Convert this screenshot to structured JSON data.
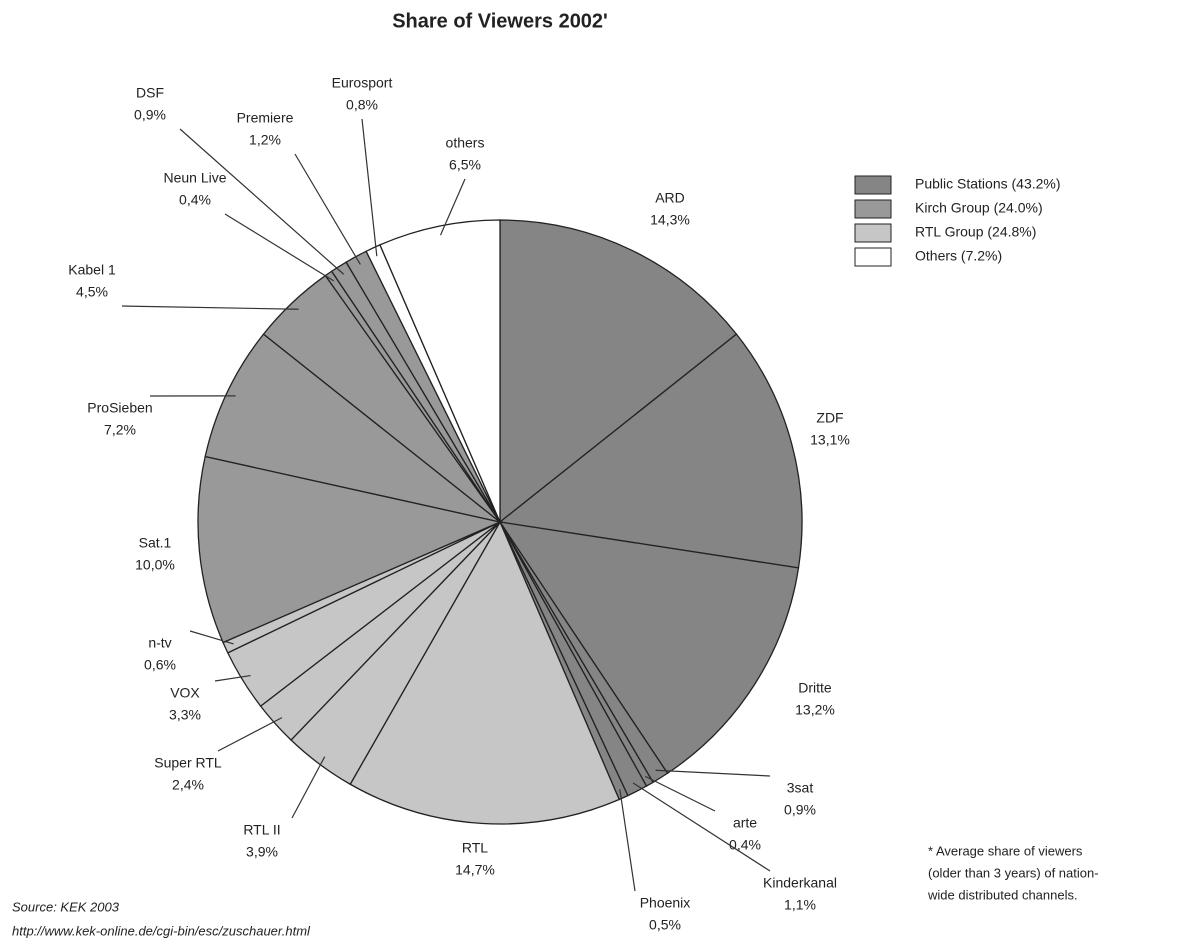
{
  "chart_data": {
    "type": "pie",
    "title": "Share of Viewers 2002'",
    "categories": [
      "ARD",
      "ZDF",
      "Dritte",
      "3sat",
      "arte",
      "Kinderkanal",
      "Phoenix",
      "RTL",
      "RTL II",
      "Super RTL",
      "VOX",
      "n-tv",
      "Sat.1",
      "ProSieben",
      "Kabel 1",
      "Neun Live",
      "DSF",
      "Premiere",
      "Eurosport",
      "others"
    ],
    "values": [
      14.3,
      13.1,
      13.2,
      0.9,
      0.4,
      1.1,
      0.5,
      14.7,
      3.9,
      2.4,
      3.3,
      0.6,
      10.0,
      7.2,
      4.5,
      0.4,
      0.9,
      1.2,
      0.8,
      6.5
    ],
    "value_labels": [
      "14,3%",
      "13,1%",
      "13,2%",
      "0,9%",
      "0,4%",
      "1,1%",
      "0,5%",
      "14,7%",
      "3,9%",
      "2,4%",
      "3,3%",
      "0,6%",
      "10,0%",
      "7,2%",
      "4,5%",
      "0,4%",
      "0,9%",
      "1,2%",
      "0,8%",
      "6,5%"
    ],
    "colors": [
      "#858585",
      "#858585",
      "#858585",
      "#858585",
      "#858585",
      "#858585",
      "#858585",
      "#c6c6c6",
      "#c6c6c6",
      "#c6c6c6",
      "#c6c6c6",
      "#c6c6c6",
      "#999999",
      "#999999",
      "#999999",
      "#999999",
      "#999999",
      "#999999",
      "#ffffff",
      "#ffffff"
    ],
    "legend": [
      {
        "name": "Public Stations (43.2%)",
        "color": "#858585"
      },
      {
        "name": "Kirch Group (24.0%)",
        "color": "#999999"
      },
      {
        "name": "RTL Group (24.8%)",
        "color": "#c6c6c6"
      },
      {
        "name": "Others (7.2%)",
        "color": "#ffffff"
      }
    ],
    "footnote": [
      "* Average share of viewers",
      "(older than 3 years) of nation-",
      "wide distributed channels."
    ],
    "source": "Source: KEK 2003",
    "url": "http://www.kek-online.de/cgi-bin/esc/zuschauer.html"
  }
}
